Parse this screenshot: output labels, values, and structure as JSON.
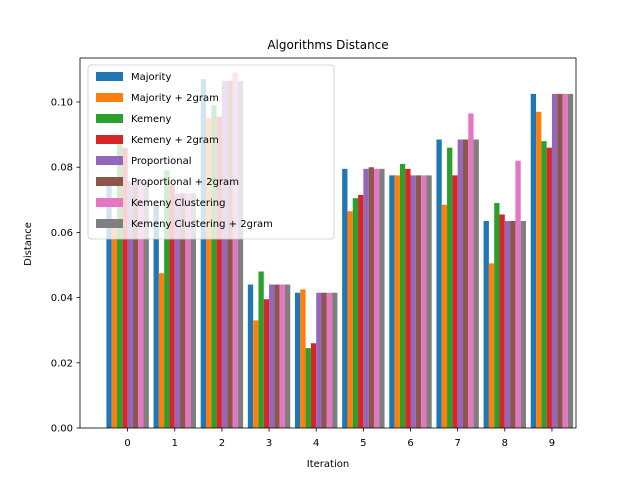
{
  "chart_data": {
    "type": "bar",
    "title": "Algorithms Distance",
    "xlabel": "Iteration",
    "ylabel": "Distance",
    "categories": [
      "0",
      "1",
      "2",
      "3",
      "4",
      "5",
      "6",
      "7",
      "8",
      "9"
    ],
    "ylim": [
      0,
      0.1135
    ],
    "yticks": [
      "0.00",
      "0.02",
      "0.04",
      "0.06",
      "0.08",
      "0.10"
    ],
    "ytick_values": [
      0,
      0.02,
      0.04,
      0.06,
      0.08,
      0.1
    ],
    "grid": false,
    "legend_position": "top-left",
    "series": [
      {
        "name": "Majority",
        "color": "#1f77b4",
        "values": [
          0.0755,
          0.0685,
          0.107,
          0.044,
          0.0415,
          0.0795,
          0.0775,
          0.0885,
          0.0635,
          0.1025
        ]
      },
      {
        "name": "Majority + 2gram",
        "color": "#ff7f0e",
        "values": [
          0.064,
          0.0475,
          0.095,
          0.033,
          0.0425,
          0.0665,
          0.0775,
          0.0685,
          0.0505,
          0.097
        ]
      },
      {
        "name": "Kemeny",
        "color": "#2ca02c",
        "values": [
          0.0875,
          0.079,
          0.099,
          0.048,
          0.0245,
          0.0705,
          0.081,
          0.086,
          0.069,
          0.088
        ]
      },
      {
        "name": "Kemeny + 2gram",
        "color": "#d62728",
        "values": [
          0.086,
          0.0745,
          0.0955,
          0.0395,
          0.026,
          0.0715,
          0.0795,
          0.0775,
          0.0655,
          0.086
        ]
      },
      {
        "name": "Proportional",
        "color": "#9467bd",
        "values": [
          0.0755,
          0.072,
          0.1065,
          0.044,
          0.0415,
          0.0795,
          0.0775,
          0.0885,
          0.0635,
          0.1025
        ]
      },
      {
        "name": "Proportional + 2gram",
        "color": "#8c564b",
        "values": [
          0.0755,
          0.072,
          0.1065,
          0.044,
          0.0415,
          0.08,
          0.0775,
          0.0885,
          0.0635,
          0.1025
        ]
      },
      {
        "name": "Kemeny Clustering",
        "color": "#e377c2",
        "values": [
          0.0755,
          0.072,
          0.109,
          0.044,
          0.0415,
          0.0795,
          0.0775,
          0.0965,
          0.082,
          0.1025
        ]
      },
      {
        "name": "Kemeny Clustering + 2gram",
        "color": "#7f7f7f",
        "values": [
          0.0755,
          0.072,
          0.1065,
          0.044,
          0.0415,
          0.0795,
          0.0775,
          0.0885,
          0.0635,
          0.1025
        ]
      }
    ]
  }
}
